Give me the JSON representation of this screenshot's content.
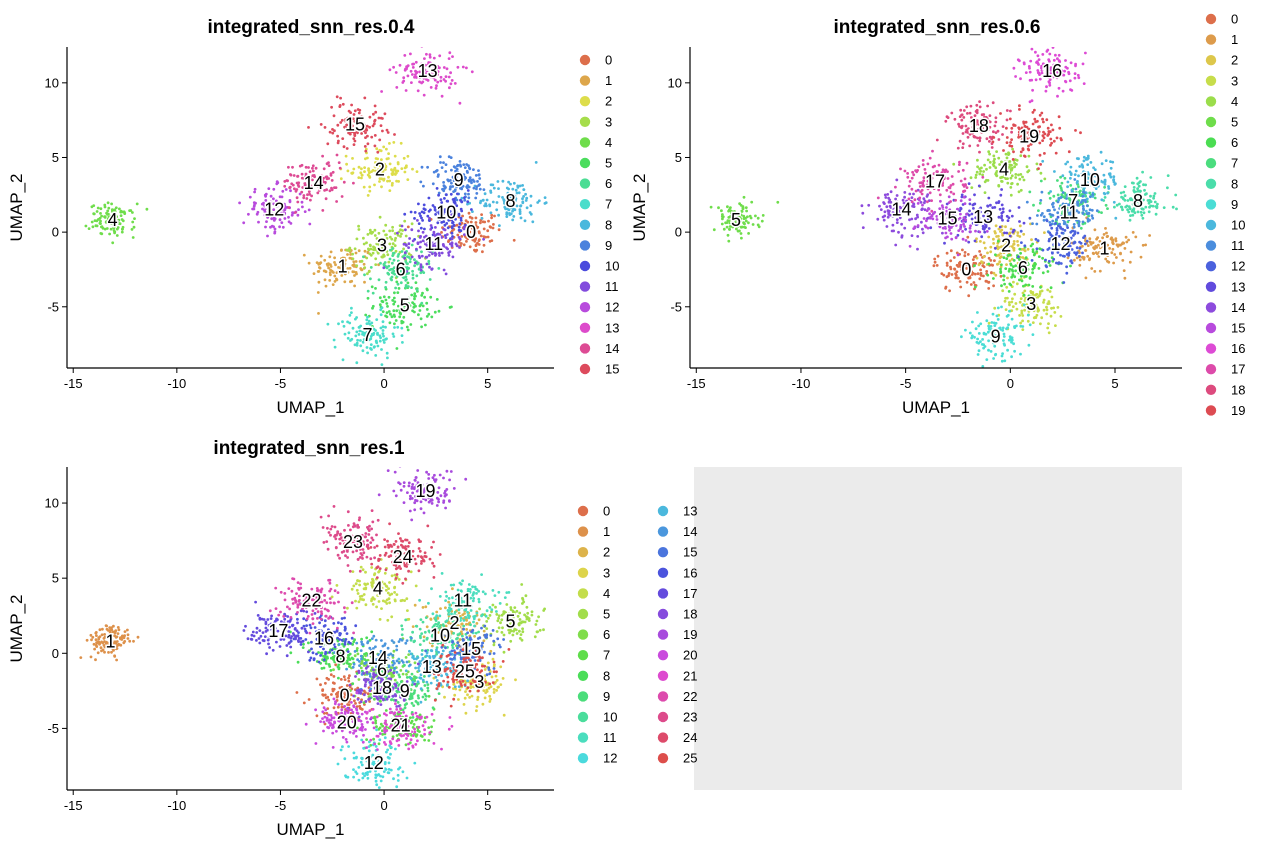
{
  "chart_data": [
    {
      "type": "scatter",
      "title": "integrated_snn_res.0.4",
      "xlabel": "UMAP_1",
      "ylabel": "UMAP_2",
      "xlim": [
        -15.3,
        8.2
      ],
      "ylim": [
        -9.1,
        12.4
      ],
      "xticks": [
        -15,
        -10,
        -5,
        0,
        5
      ],
      "yticks": [
        -5,
        0,
        5,
        10
      ],
      "grid": false,
      "legend_position": "right",
      "legend_columns": 1,
      "n_clusters": 16,
      "clusters": [
        {
          "name": "0",
          "x": 4.2,
          "y": 0
        },
        {
          "name": "1",
          "x": -2,
          "y": -2.3
        },
        {
          "name": "2",
          "x": -0.2,
          "y": 4.2
        },
        {
          "name": "3",
          "x": -0.1,
          "y": -0.9
        },
        {
          "name": "4",
          "x": -13.1,
          "y": 0.8
        },
        {
          "name": "5",
          "x": 1,
          "y": -4.9
        },
        {
          "name": "6",
          "x": 0.8,
          "y": -2.5
        },
        {
          "name": "7",
          "x": -0.8,
          "y": -6.9
        },
        {
          "name": "8",
          "x": 6.1,
          "y": 2.1
        },
        {
          "name": "9",
          "x": 3.6,
          "y": 3.5
        },
        {
          "name": "10",
          "x": 3,
          "y": 1.3
        },
        {
          "name": "11",
          "x": 2.4,
          "y": -0.8
        },
        {
          "name": "12",
          "x": -5.3,
          "y": 1.5
        },
        {
          "name": "13",
          "x": 2.1,
          "y": 10.8
        },
        {
          "name": "14",
          "x": -3.4,
          "y": 3.3
        },
        {
          "name": "15",
          "x": -1.4,
          "y": 7.2
        }
      ]
    },
    {
      "type": "scatter",
      "title": "integrated_snn_res.0.6",
      "xlabel": "UMAP_1",
      "ylabel": "UMAP_2",
      "xlim": [
        -15.3,
        8.2
      ],
      "ylim": [
        -9.1,
        12.4
      ],
      "xticks": [
        -15,
        -10,
        -5,
        0,
        5
      ],
      "yticks": [
        -5,
        0,
        5,
        10
      ],
      "grid": false,
      "legend_position": "right",
      "legend_columns": 1,
      "n_clusters": 20,
      "clusters": [
        {
          "name": "0",
          "x": -2.1,
          "y": -2.5
        },
        {
          "name": "1",
          "x": 4.5,
          "y": -1.1
        },
        {
          "name": "2",
          "x": -0.2,
          "y": -0.9
        },
        {
          "name": "3",
          "x": 1,
          "y": -4.8
        },
        {
          "name": "4",
          "x": -0.3,
          "y": 4.2
        },
        {
          "name": "5",
          "x": -13.1,
          "y": 0.8
        },
        {
          "name": "6",
          "x": 0.6,
          "y": -2.4
        },
        {
          "name": "7",
          "x": 3,
          "y": 2.1
        },
        {
          "name": "8",
          "x": 6.1,
          "y": 2.1
        },
        {
          "name": "9",
          "x": -0.7,
          "y": -7
        },
        {
          "name": "10",
          "x": 3.8,
          "y": 3.5
        },
        {
          "name": "11",
          "x": 2.8,
          "y": 1.3
        },
        {
          "name": "12",
          "x": 2.4,
          "y": -0.8
        },
        {
          "name": "13",
          "x": -1.3,
          "y": 1
        },
        {
          "name": "14",
          "x": -5.2,
          "y": 1.5
        },
        {
          "name": "15",
          "x": -3,
          "y": 0.9
        },
        {
          "name": "16",
          "x": 2,
          "y": 10.8
        },
        {
          "name": "17",
          "x": -3.6,
          "y": 3.4
        },
        {
          "name": "18",
          "x": -1.5,
          "y": 7.1
        },
        {
          "name": "19",
          "x": 0.9,
          "y": 6.4
        }
      ]
    },
    {
      "type": "scatter",
      "title": "integrated_snn_res.1",
      "xlabel": "UMAP_1",
      "ylabel": "UMAP_2",
      "xlim": [
        -15.3,
        8.2
      ],
      "ylim": [
        -9.1,
        12.4
      ],
      "xticks": [
        -15,
        -10,
        -5,
        0,
        5
      ],
      "yticks": [
        -5,
        0,
        5,
        10
      ],
      "grid": false,
      "legend_position": "right",
      "legend_columns": 2,
      "n_clusters": 26,
      "clusters": [
        {
          "name": "0",
          "x": -1.9,
          "y": -2.8
        },
        {
          "name": "1",
          "x": -13.2,
          "y": 0.8
        },
        {
          "name": "2",
          "x": 3.4,
          "y": 2
        },
        {
          "name": "3",
          "x": 4.6,
          "y": -1.9
        },
        {
          "name": "4",
          "x": -0.3,
          "y": 4.3
        },
        {
          "name": "5",
          "x": 6.1,
          "y": 2.1
        },
        {
          "name": "6",
          "x": -0.1,
          "y": -1.1
        },
        {
          "name": "7",
          "x": 0.9,
          "y": -4.8
        },
        {
          "name": "8",
          "x": -2.1,
          "y": -0.2
        },
        {
          "name": "9",
          "x": 1,
          "y": -2.5
        },
        {
          "name": "10",
          "x": 2.7,
          "y": 1.2
        },
        {
          "name": "11",
          "x": 3.8,
          "y": 3.5
        },
        {
          "name": "12",
          "x": -0.5,
          "y": -7.3
        },
        {
          "name": "13",
          "x": 2.3,
          "y": -0.9
        },
        {
          "name": "14",
          "x": -0.3,
          "y": -0.3
        },
        {
          "name": "15",
          "x": 4.2,
          "y": 0.3
        },
        {
          "name": "16",
          "x": -2.9,
          "y": 1
        },
        {
          "name": "17",
          "x": -5.1,
          "y": 1.5
        },
        {
          "name": "18",
          "x": -0.1,
          "y": -2.3
        },
        {
          "name": "19",
          "x": 2,
          "y": 10.8
        },
        {
          "name": "20",
          "x": -1.8,
          "y": -4.6
        },
        {
          "name": "21",
          "x": 0.8,
          "y": -4.8
        },
        {
          "name": "22",
          "x": -3.5,
          "y": 3.5
        },
        {
          "name": "23",
          "x": -1.5,
          "y": 7.4
        },
        {
          "name": "24",
          "x": 0.9,
          "y": 6.4
        },
        {
          "name": "25",
          "x": 3.9,
          "y": -1.2
        }
      ]
    }
  ]
}
